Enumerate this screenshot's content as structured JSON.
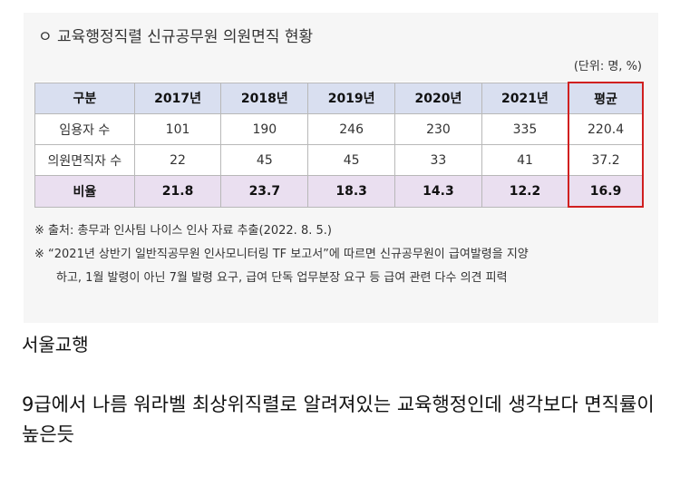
{
  "figure": {
    "title": "ㅇ 교육행정직렬 신규공무원 의원면직 현황",
    "unit": "(단위: 명, %)",
    "headers": [
      "구분",
      "2017년",
      "2018년",
      "2019년",
      "2020년",
      "2021년",
      "평균"
    ],
    "rows": [
      [
        "임용자 수",
        "101",
        "190",
        "246",
        "230",
        "335",
        "220.4"
      ],
      [
        "의원면직자 수",
        "22",
        "45",
        "45",
        "33",
        "41",
        "37.2"
      ],
      [
        "비율",
        "21.8",
        "23.7",
        "18.3",
        "14.3",
        "12.2",
        "16.9"
      ]
    ],
    "notes": [
      "※ 출처: 총무과 인사팀 나이스 인사 자료 추출(2022. 8. 5.)",
      "※ “2021년 상반기 일반직공무원 인사모니터링 TF 보고서”에 따르면 신규공무원이 급여발령을 지양",
      "하고, 1월 발령이 아닌 7월 발령 요구, 급여 단독 업무분장 요구 등 급여 관련 다수 의견 피력"
    ]
  },
  "post": {
    "source": "서울교행",
    "body": "9급에서 나름 워라벨 최상위직렬로 알려져있는 교육행정인데 생각보다 면직률이 높은듯"
  }
}
